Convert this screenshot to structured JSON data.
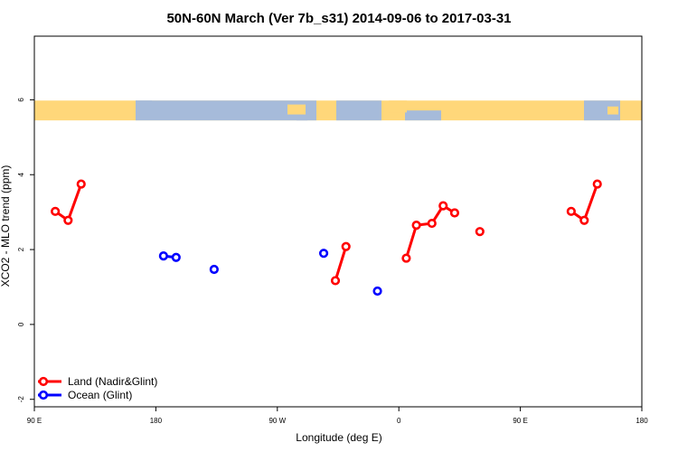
{
  "chart_data": {
    "type": "scatter",
    "title": "50N-60N March (Ver 7b_s31)   2014-09-06 to 2017-03-31",
    "xlabel": "Longitude (deg E)",
    "ylabel": "XCO2 - MLO trend (ppm)",
    "xlim": [
      90,
      360
    ],
    "ylim": [
      -2.2,
      7.7
    ],
    "x_ticks": [
      {
        "value": 90,
        "label": "90 E"
      },
      {
        "value": 144,
        "label": "180"
      },
      {
        "value": 198,
        "label": "90 W"
      },
      {
        "value": 252,
        "label": "0"
      },
      {
        "value": 306,
        "label": "90 E"
      },
      {
        "value": 360,
        "label": "180"
      }
    ],
    "y_ticks": [
      {
        "value": -2,
        "label": "-2"
      },
      {
        "value": 0,
        "label": "0"
      },
      {
        "value": 2,
        "label": "2"
      },
      {
        "value": 4,
        "label": "4"
      },
      {
        "value": 6,
        "label": "6"
      }
    ],
    "map_strip": {
      "y_range": [
        5.45,
        5.98
      ],
      "land_color": "#FFD77A",
      "ocean_color": "#A6BBDA"
    },
    "series": [
      {
        "name": "Land (Nadir&Glint)",
        "color": "#FF0000",
        "segments": [
          [
            [
              99.3,
              3.02
            ],
            [
              105.0,
              2.78
            ],
            [
              110.8,
              3.75
            ]
          ],
          [
            [
              223.8,
              1.17
            ],
            [
              228.5,
              2.08
            ]
          ],
          [
            [
              288.0,
              2.48
            ]
          ],
          [
            [
              328.6,
              3.02
            ],
            [
              334.4,
              2.78
            ],
            [
              340.2,
              3.75
            ]
          ]
        ]
      },
      {
        "name": "Ocean (Glint)",
        "color": "#0000FF",
        "segments": [
          [
            [
              147.4,
              1.83
            ],
            [
              153.0,
              1.79
            ]
          ],
          [
            [
              169.9,
              1.47
            ]
          ],
          [
            [
              218.6,
              1.9
            ]
          ],
          [
            [
              242.5,
              0.89
            ]
          ]
        ]
      },
      {
        "name": "Land (Nadir&Glint)",
        "color": "#FF0000",
        "segments": [
          [
            [
              255.3,
              1.77
            ],
            [
              259.8,
              2.65
            ],
            [
              266.7,
              2.7
            ],
            [
              271.7,
              3.17
            ],
            [
              276.8,
              2.98
            ]
          ]
        ]
      }
    ],
    "legend": {
      "placement": "bottom-left",
      "entries": [
        {
          "label": "Land (Nadir&Glint)",
          "color": "#FF0000"
        },
        {
          "label": "Ocean (Glint)",
          "color": "#0000FF"
        }
      ]
    },
    "grid": false
  }
}
